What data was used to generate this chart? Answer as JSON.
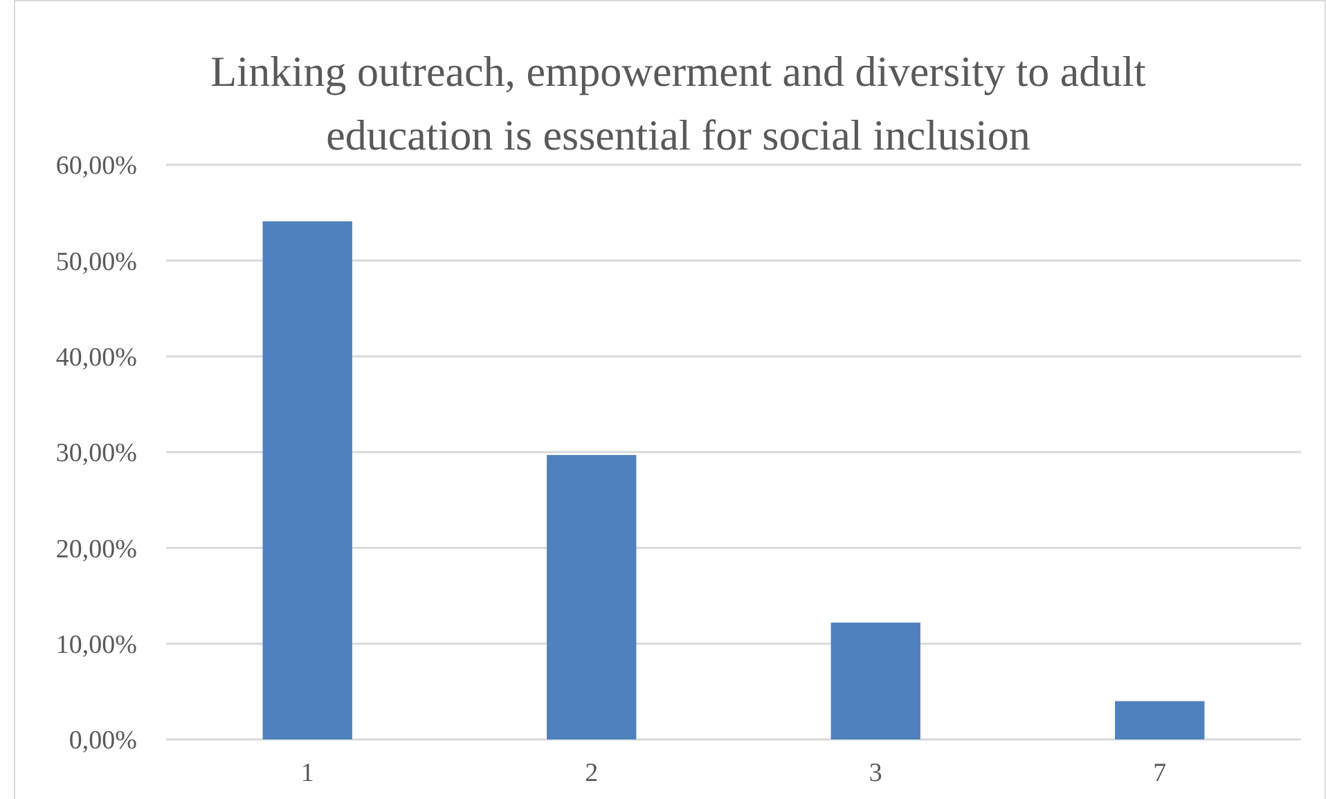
{
  "chart_data": {
    "type": "bar",
    "title": "Linking outreach, empowerment and diversity to adult education is essential for social inclusion",
    "categories": [
      "1",
      "2",
      "3",
      "7"
    ],
    "values": [
      54.1,
      29.7,
      12.2,
      4.0
    ],
    "color": "#4f81bd",
    "ylim": [
      0,
      60
    ],
    "yticks": [
      {
        "value": 0,
        "label": "0,00%"
      },
      {
        "value": 10,
        "label": "10,00%"
      },
      {
        "value": 20,
        "label": "20,00%"
      },
      {
        "value": 30,
        "label": "30,00%"
      },
      {
        "value": 40,
        "label": "40,00%"
      },
      {
        "value": 50,
        "label": "50,00%"
      },
      {
        "value": 60,
        "label": "60,00%"
      }
    ],
    "grid": "y"
  }
}
